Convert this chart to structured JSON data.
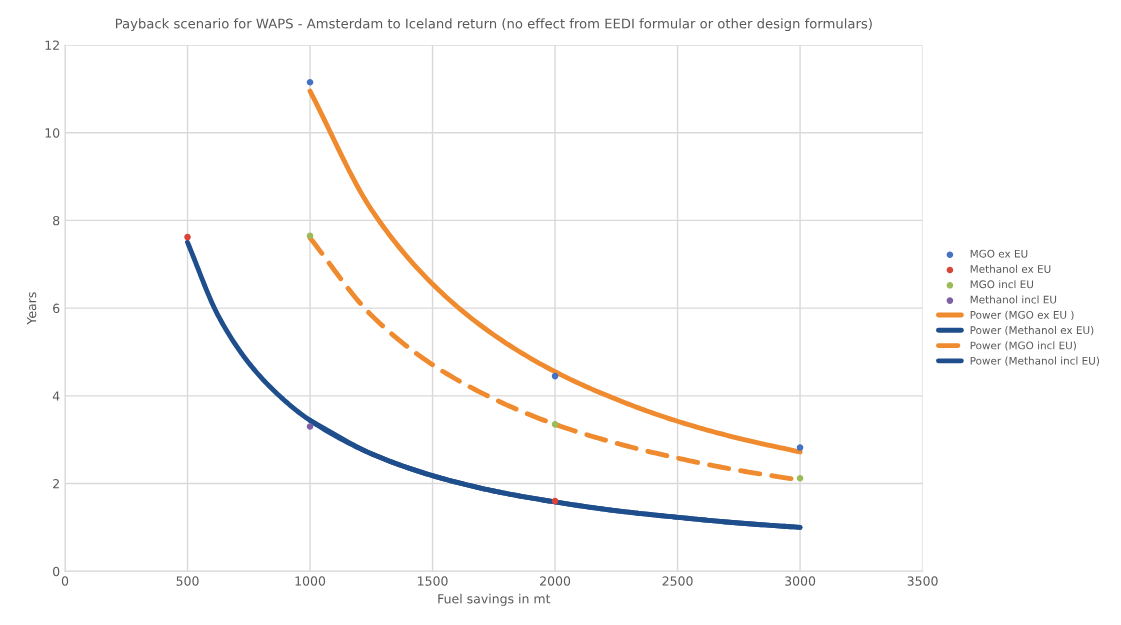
{
  "chart_data": {
    "type": "scatter",
    "title": "Payback scenario for WAPS - Amsterdam to Iceland return (no effect from EEDI formular or other design formulars)",
    "xlabel": "Fuel savings in mt",
    "ylabel": "Years",
    "xlim": [
      0,
      3500
    ],
    "xticks": [
      0,
      500,
      1000,
      1500,
      2000,
      2500,
      3000,
      3500
    ],
    "ylim": [
      0,
      12
    ],
    "yticks": [
      0,
      2,
      4,
      6,
      8,
      10,
      12
    ],
    "grid": true,
    "legend": "right",
    "series": [
      {
        "name": "MGO ex EU",
        "marker": "circle",
        "color": "#4472c4",
        "x": [
          1000,
          2000,
          3000
        ],
        "values": [
          11.15,
          4.45,
          2.82
        ]
      },
      {
        "name": "Methanol ex EU",
        "marker": "circle",
        "color": "#d9443a",
        "x": [
          500,
          2000
        ],
        "values": [
          7.62,
          1.6
        ]
      },
      {
        "name": "MGO incl EU",
        "marker": "circle",
        "color": "#9bbb59",
        "x": [
          1000,
          2000,
          3000
        ],
        "values": [
          7.65,
          3.35,
          2.12
        ]
      },
      {
        "name": "Methanol incl EU",
        "marker": "circle",
        "color": "#7f5fa8",
        "x": [
          1000
        ],
        "values": [
          3.3
        ]
      },
      {
        "name": "Power (MGO ex EU )",
        "type": "line",
        "marker": "none",
        "line_style": "solid",
        "color": "#f08a2e",
        "x": [
          1000,
          1250,
          1500,
          1750,
          2000,
          2250,
          2500,
          2750,
          3000
        ],
        "values": [
          10.95,
          8.25,
          6.55,
          5.39,
          4.55,
          3.92,
          3.42,
          3.03,
          2.72
        ]
      },
      {
        "name": "Power (Methanol ex EU)",
        "type": "line",
        "marker": "none",
        "line_style": "solid",
        "color": "#1f4e8c",
        "x": [
          500,
          625,
          750,
          875,
          1000,
          1250,
          1500,
          1750,
          2000,
          2250,
          2500,
          2750,
          3000
        ],
        "values": [
          7.5,
          5.83,
          4.75,
          4.0,
          3.44,
          2.68,
          2.18,
          1.83,
          1.58,
          1.38,
          1.23,
          1.1,
          1.0
        ]
      },
      {
        "name": "Power (MGO incl EU)",
        "type": "line",
        "marker": "none",
        "line_style": "dashed",
        "color": "#f08a2e",
        "x": [
          1000,
          1250,
          1500,
          1750,
          2000,
          2250,
          2500,
          2750,
          3000
        ],
        "values": [
          7.6,
          5.84,
          4.71,
          3.93,
          3.35,
          2.92,
          2.58,
          2.3,
          2.08
        ]
      },
      {
        "name": "Power (Methanol incl EU)",
        "type": "line",
        "marker": "none",
        "line_style": "solid",
        "color": "#1f4e8c",
        "x": [
          1000,
          1250,
          1500,
          1750,
          2000,
          2250,
          2500,
          2750,
          3000
        ],
        "values": [
          3.44,
          2.68,
          2.18,
          1.83,
          1.58,
          1.38,
          1.23,
          1.1,
          1.0
        ]
      }
    ]
  }
}
